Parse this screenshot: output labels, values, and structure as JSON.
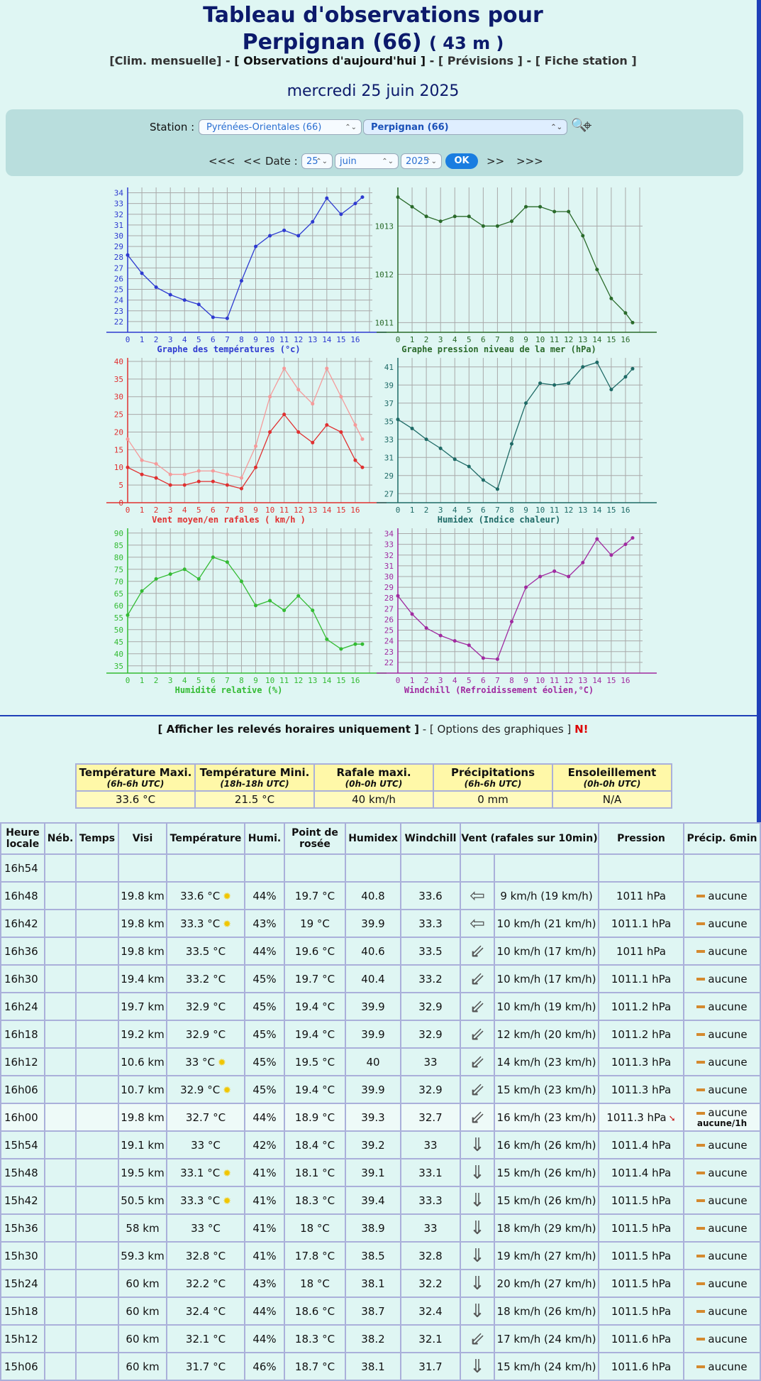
{
  "header": {
    "title_line1": "Tableau d'observations pour",
    "title_line2": "Perpignan (66)",
    "altitude": "( 43 m )",
    "links": {
      "clim": "[Clim. mensuelle]",
      "sep1": " - ",
      "obs": "[ Observations d'aujourd'hui ]",
      "sep2": " - ",
      "prev": "[ Prévisions ]",
      "sep3": " - ",
      "fiche": "[ Fiche station ]"
    },
    "date": "mercredi 25 juin 2025"
  },
  "station_form": {
    "station_label": "Station :",
    "dept_select": "Pyrénées-Orientales (66)",
    "station_select": "Perpignan (66)",
    "nav_first": "<<<",
    "nav_prev": "<<",
    "date_label": "Date :",
    "day": "25",
    "month": "juin",
    "year": "2025",
    "ok": "OK",
    "nav_next": ">>",
    "nav_last": ">>>"
  },
  "charts": {
    "temperature": {
      "title": "Graphe des températures (°c)",
      "color": "#2e3ad0",
      "y_ticks": [
        "34",
        "33",
        "32",
        "31",
        "30",
        "29",
        "28",
        "27",
        "26",
        "25",
        "24",
        "23",
        "22"
      ],
      "x_ticks": [
        "0",
        "1",
        "2",
        "3",
        "4",
        "5",
        "6",
        "7",
        "8",
        "9",
        "10",
        "11",
        "12",
        "13",
        "14",
        "15",
        "16"
      ]
    },
    "pressure": {
      "title": "Graphe pression niveau de la mer (hPa)",
      "color": "#2a6a2a",
      "y_ticks": [
        "1013",
        "1012",
        "1011"
      ],
      "x_ticks": [
        "0",
        "1",
        "2",
        "3",
        "4",
        "5",
        "6",
        "7",
        "8",
        "9",
        "10",
        "11",
        "12",
        "13",
        "14",
        "15",
        "16"
      ]
    },
    "wind": {
      "title": "Vent moyen/en rafales ( km/h )",
      "color": "#e03030",
      "y_ticks": [
        "40",
        "35",
        "30",
        "25",
        "20",
        "15",
        "10",
        "5",
        "0"
      ],
      "x_ticks": [
        "0",
        "1",
        "2",
        "3",
        "4",
        "5",
        "6",
        "7",
        "8",
        "9",
        "10",
        "11",
        "12",
        "13",
        "14",
        "15",
        "16"
      ]
    },
    "humidex": {
      "title": "Humidex (Indice chaleur)",
      "color": "#1e6a66",
      "y_ticks": [
        "41",
        "39",
        "37",
        "35",
        "33",
        "31",
        "29",
        "27"
      ],
      "x_ticks": [
        "0",
        "1",
        "2",
        "3",
        "4",
        "5",
        "6",
        "7",
        "8",
        "9",
        "10",
        "11",
        "12",
        "13",
        "14",
        "15",
        "16"
      ]
    },
    "humidity": {
      "title": "Humidité relative (%)",
      "color": "#33bb33",
      "y_ticks": [
        "90",
        "85",
        "80",
        "75",
        "70",
        "65",
        "60",
        "55",
        "50",
        "45",
        "40",
        "35"
      ],
      "x_ticks": [
        "0",
        "1",
        "2",
        "3",
        "4",
        "5",
        "6",
        "7",
        "8",
        "9",
        "10",
        "11",
        "12",
        "13",
        "14",
        "15",
        "16"
      ]
    },
    "windchill": {
      "title": "Windchill (Refroidissement éolien,°C)",
      "color": "#a02aa0",
      "y_ticks": [
        "34",
        "33",
        "32",
        "31",
        "30",
        "29",
        "28",
        "27",
        "26",
        "25",
        "24",
        "23",
        "22"
      ],
      "x_ticks": [
        "0",
        "1",
        "2",
        "3",
        "4",
        "5",
        "6",
        "7",
        "8",
        "9",
        "10",
        "11",
        "12",
        "13",
        "14",
        "15",
        "16"
      ]
    }
  },
  "chart_data": [
    {
      "type": "line",
      "title": "Graphe des températures (°c)",
      "x": [
        0,
        1,
        2,
        3,
        4,
        5,
        6,
        7,
        8,
        9,
        10,
        11,
        12,
        13,
        14,
        15,
        16,
        16.5
      ],
      "series": [
        {
          "values": [
            28.2,
            26.5,
            25.2,
            24.5,
            24.0,
            23.6,
            22.4,
            22.3,
            25.8,
            29.0,
            30.0,
            30.5,
            30.0,
            31.3,
            33.5,
            32.0,
            33.0,
            33.6
          ]
        }
      ],
      "ylim": [
        21,
        34.5
      ]
    },
    {
      "type": "line",
      "title": "Graphe pression niveau de la mer (hPa)",
      "x": [
        0,
        1,
        2,
        3,
        4,
        5,
        6,
        7,
        8,
        9,
        10,
        11,
        12,
        13,
        14,
        15,
        16,
        16.5
      ],
      "series": [
        {
          "values": [
            1013.6,
            1013.4,
            1013.2,
            1013.1,
            1013.2,
            1013.2,
            1013.0,
            1013.0,
            1013.1,
            1013.4,
            1013.4,
            1013.3,
            1013.3,
            1012.8,
            1012.1,
            1011.5,
            1011.2,
            1011.0
          ]
        }
      ],
      "ylim": [
        1010.8,
        1013.8
      ]
    },
    {
      "type": "line",
      "title": "Vent moyen/en rafales ( km/h )",
      "x": [
        0,
        1,
        2,
        3,
        4,
        5,
        6,
        7,
        8,
        9,
        10,
        11,
        12,
        13,
        14,
        15,
        16,
        16.5
      ],
      "series": [
        {
          "values": [
            10,
            8,
            7,
            5,
            5,
            6,
            6,
            5,
            4,
            10,
            20,
            25,
            20,
            17,
            22,
            20,
            12,
            10
          ]
        },
        {
          "values": [
            18,
            12,
            11,
            8,
            8,
            9,
            9,
            8,
            7,
            16,
            30,
            38,
            32,
            28,
            38,
            30,
            22,
            18
          ]
        }
      ],
      "ylim": [
        0,
        41
      ]
    },
    {
      "type": "line",
      "title": "Humidex (Indice chaleur)",
      "x": [
        0,
        1,
        2,
        3,
        4,
        5,
        6,
        7,
        8,
        9,
        10,
        11,
        12,
        13,
        14,
        15,
        16,
        16.5
      ],
      "series": [
        {
          "values": [
            35.2,
            34.2,
            33.0,
            32.0,
            30.8,
            30.0,
            28.5,
            27.5,
            32.5,
            37.0,
            39.2,
            39.0,
            39.2,
            41.0,
            41.5,
            38.5,
            39.9,
            40.8
          ]
        }
      ],
      "ylim": [
        26,
        42
      ]
    },
    {
      "type": "line",
      "title": "Humidité relative (%)",
      "x": [
        0,
        1,
        2,
        3,
        4,
        5,
        6,
        7,
        8,
        9,
        10,
        11,
        12,
        13,
        14,
        15,
        16,
        16.5
      ],
      "series": [
        {
          "values": [
            56,
            66,
            71,
            73,
            75,
            71,
            80,
            78,
            70,
            60,
            62,
            58,
            64,
            58,
            46,
            42,
            44,
            44
          ]
        }
      ],
      "ylim": [
        32,
        92
      ]
    },
    {
      "type": "line",
      "title": "Windchill (Refroidissement éolien,°C)",
      "x": [
        0,
        1,
        2,
        3,
        4,
        5,
        6,
        7,
        8,
        9,
        10,
        11,
        12,
        13,
        14,
        15,
        16,
        16.5
      ],
      "series": [
        {
          "values": [
            28.2,
            26.5,
            25.2,
            24.5,
            24.0,
            23.6,
            22.4,
            22.3,
            25.8,
            29.0,
            30.0,
            30.5,
            30.0,
            31.3,
            33.5,
            32.0,
            33.0,
            33.6
          ]
        }
      ],
      "ylim": [
        21,
        34.5
      ]
    }
  ],
  "subnav": {
    "hourly": "[ Afficher les relevés horaires uniquement ]",
    "sep": " - ",
    "options": "[ Options des graphiques ]",
    "new": "N!"
  },
  "summary": {
    "headers": [
      {
        "label": "Température Maxi.",
        "sub": "(6h-6h UTC)"
      },
      {
        "label": "Température Mini.",
        "sub": "(18h-18h UTC)"
      },
      {
        "label": "Rafale maxi.",
        "sub": "(0h-0h UTC)"
      },
      {
        "label": "Précipitations",
        "sub": "(6h-6h UTC)"
      },
      {
        "label": "Ensoleillement",
        "sub": "(0h-0h UTC)"
      }
    ],
    "values": [
      "33.6 °C",
      "21.5 °C",
      "40 km/h",
      "0 mm",
      "N/A"
    ]
  },
  "table": {
    "headers": [
      "Heure locale",
      "Néb.",
      "Temps",
      "Visi",
      "Température",
      "Humi.",
      "Point de rosée",
      "Humidex",
      "Windchill",
      "Vent (rafales sur 10min)",
      "Pression",
      "Précip. 6min"
    ],
    "rows": [
      {
        "time": "16h54",
        "visi": "",
        "temp": "",
        "sun": false,
        "hum": "",
        "dew": "",
        "humidex": "",
        "wc": "",
        "arrow": "",
        "wind": "",
        "pres": "",
        "prec": "",
        "prec2": "",
        "trend": ""
      },
      {
        "time": "16h48",
        "visi": "19.8 km",
        "temp": "33.6 °C",
        "sun": true,
        "hum": "44%",
        "dew": "19.7 °C",
        "humidex": "40.8",
        "wc": "33.6",
        "arrow": "⇦",
        "wind": "9 km/h (19 km/h)",
        "pres": "1011 hPa",
        "prec": "aucune",
        "prec2": "",
        "trend": ""
      },
      {
        "time": "16h42",
        "visi": "19.8 km",
        "temp": "33.3 °C",
        "sun": true,
        "hum": "43%",
        "dew": "19 °C",
        "humidex": "39.9",
        "wc": "33.3",
        "arrow": "⇦",
        "wind": "10 km/h (21 km/h)",
        "pres": "1011.1 hPa",
        "prec": "aucune",
        "prec2": "",
        "trend": ""
      },
      {
        "time": "16h36",
        "visi": "19.8 km",
        "temp": "33.5 °C",
        "sun": false,
        "hum": "44%",
        "dew": "19.6 °C",
        "humidex": "40.6",
        "wc": "33.5",
        "arrow": "⇙",
        "wind": "10 km/h (17 km/h)",
        "pres": "1011 hPa",
        "prec": "aucune",
        "prec2": "",
        "trend": ""
      },
      {
        "time": "16h30",
        "visi": "19.4 km",
        "temp": "33.2 °C",
        "sun": false,
        "hum": "45%",
        "dew": "19.7 °C",
        "humidex": "40.4",
        "wc": "33.2",
        "arrow": "⇙",
        "wind": "10 km/h (17 km/h)",
        "pres": "1011.1 hPa",
        "prec": "aucune",
        "prec2": "",
        "trend": ""
      },
      {
        "time": "16h24",
        "visi": "19.7 km",
        "temp": "32.9 °C",
        "sun": false,
        "hum": "45%",
        "dew": "19.4 °C",
        "humidex": "39.9",
        "wc": "32.9",
        "arrow": "⇙",
        "wind": "10 km/h (19 km/h)",
        "pres": "1011.2 hPa",
        "prec": "aucune",
        "prec2": "",
        "trend": ""
      },
      {
        "time": "16h18",
        "visi": "19.2 km",
        "temp": "32.9 °C",
        "sun": false,
        "hum": "45%",
        "dew": "19.4 °C",
        "humidex": "39.9",
        "wc": "32.9",
        "arrow": "⇙",
        "wind": "12 km/h (20 km/h)",
        "pres": "1011.2 hPa",
        "prec": "aucune",
        "prec2": "",
        "trend": ""
      },
      {
        "time": "16h12",
        "visi": "10.6 km",
        "temp": "33 °C",
        "sun": true,
        "hum": "45%",
        "dew": "19.5 °C",
        "humidex": "40",
        "wc": "33",
        "arrow": "⇙",
        "wind": "14 km/h (23 km/h)",
        "pres": "1011.3 hPa",
        "prec": "aucune",
        "prec2": "",
        "trend": ""
      },
      {
        "time": "16h06",
        "visi": "10.7 km",
        "temp": "32.9 °C",
        "sun": true,
        "hum": "45%",
        "dew": "19.4 °C",
        "humidex": "39.9",
        "wc": "32.9",
        "arrow": "⇙",
        "wind": "15 km/h (23 km/h)",
        "pres": "1011.3 hPa",
        "prec": "aucune",
        "prec2": "",
        "trend": ""
      },
      {
        "time": "16h00",
        "visi": "19.8 km",
        "temp": "32.7 °C",
        "sun": false,
        "hum": "44%",
        "dew": "18.9 °C",
        "humidex": "39.3",
        "wc": "32.7",
        "arrow": "⇙",
        "wind": "16 km/h (23 km/h)",
        "pres": "1011.3 hPa",
        "prec": "aucune",
        "prec2": "aucune/1h",
        "trend": "➘",
        "hl": true
      },
      {
        "time": "15h54",
        "visi": "19.1 km",
        "temp": "33 °C",
        "sun": false,
        "hum": "42%",
        "dew": "18.4 °C",
        "humidex": "39.2",
        "wc": "33",
        "arrow": "⇓",
        "wind": "16 km/h (26 km/h)",
        "pres": "1011.4 hPa",
        "prec": "aucune",
        "prec2": "",
        "trend": ""
      },
      {
        "time": "15h48",
        "visi": "19.5 km",
        "temp": "33.1 °C",
        "sun": true,
        "hum": "41%",
        "dew": "18.1 °C",
        "humidex": "39.1",
        "wc": "33.1",
        "arrow": "⇓",
        "wind": "15 km/h (26 km/h)",
        "pres": "1011.4 hPa",
        "prec": "aucune",
        "prec2": "",
        "trend": ""
      },
      {
        "time": "15h42",
        "visi": "50.5 km",
        "temp": "33.3 °C",
        "sun": true,
        "hum": "41%",
        "dew": "18.3 °C",
        "humidex": "39.4",
        "wc": "33.3",
        "arrow": "⇓",
        "wind": "15 km/h (26 km/h)",
        "pres": "1011.5 hPa",
        "prec": "aucune",
        "prec2": "",
        "trend": ""
      },
      {
        "time": "15h36",
        "visi": "58 km",
        "temp": "33 °C",
        "sun": false,
        "hum": "41%",
        "dew": "18 °C",
        "humidex": "38.9",
        "wc": "33",
        "arrow": "⇓",
        "wind": "18 km/h (29 km/h)",
        "pres": "1011.5 hPa",
        "prec": "aucune",
        "prec2": "",
        "trend": ""
      },
      {
        "time": "15h30",
        "visi": "59.3 km",
        "temp": "32.8 °C",
        "sun": false,
        "hum": "41%",
        "dew": "17.8 °C",
        "humidex": "38.5",
        "wc": "32.8",
        "arrow": "⇓",
        "wind": "19 km/h (27 km/h)",
        "pres": "1011.5 hPa",
        "prec": "aucune",
        "prec2": "",
        "trend": ""
      },
      {
        "time": "15h24",
        "visi": "60 km",
        "temp": "32.2 °C",
        "sun": false,
        "hum": "43%",
        "dew": "18 °C",
        "humidex": "38.1",
        "wc": "32.2",
        "arrow": "⇓",
        "wind": "20 km/h (27 km/h)",
        "pres": "1011.5 hPa",
        "prec": "aucune",
        "prec2": "",
        "trend": ""
      },
      {
        "time": "15h18",
        "visi": "60 km",
        "temp": "32.4 °C",
        "sun": false,
        "hum": "44%",
        "dew": "18.6 °C",
        "humidex": "38.7",
        "wc": "32.4",
        "arrow": "⇓",
        "wind": "18 km/h (26 km/h)",
        "pres": "1011.5 hPa",
        "prec": "aucune",
        "prec2": "",
        "trend": ""
      },
      {
        "time": "15h12",
        "visi": "60 km",
        "temp": "32.1 °C",
        "sun": false,
        "hum": "44%",
        "dew": "18.3 °C",
        "humidex": "38.2",
        "wc": "32.1",
        "arrow": "⇙",
        "wind": "17 km/h (24 km/h)",
        "pres": "1011.6 hPa",
        "prec": "aucune",
        "prec2": "",
        "trend": ""
      },
      {
        "time": "15h06",
        "visi": "60 km",
        "temp": "31.7 °C",
        "sun": false,
        "hum": "46%",
        "dew": "18.7 °C",
        "humidex": "38.1",
        "wc": "31.7",
        "arrow": "⇓",
        "wind": "15 km/h (24 km/h)",
        "pres": "1011.6 hPa",
        "prec": "aucune",
        "prec2": "",
        "trend": ""
      }
    ]
  }
}
